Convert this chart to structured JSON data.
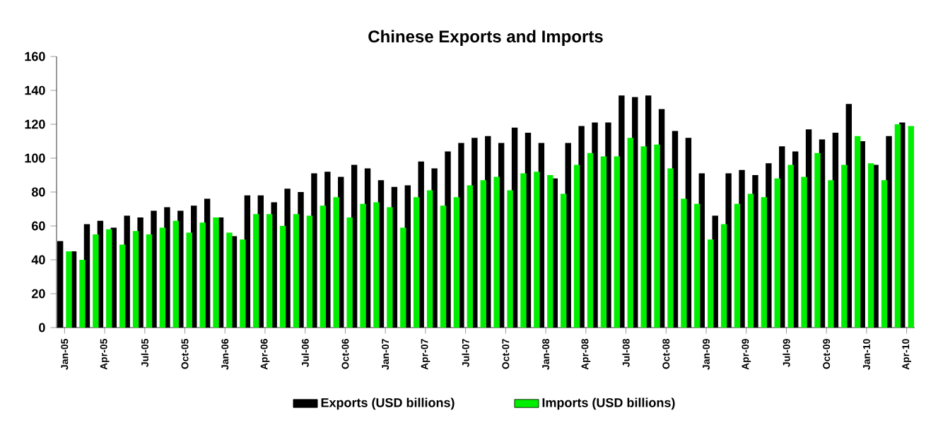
{
  "chart_data": {
    "type": "bar",
    "title": "Chinese Exports and Imports",
    "categories": [
      "Jan-05",
      null,
      null,
      "Apr-05",
      null,
      null,
      "Jul-05",
      null,
      null,
      "Oct-05",
      null,
      null,
      "Jan-06",
      null,
      null,
      "Apr-06",
      null,
      null,
      "Jul-06",
      null,
      null,
      "Oct-06",
      null,
      null,
      "Jan-07",
      null,
      null,
      "Apr-07",
      null,
      null,
      "Jul-07",
      null,
      null,
      "Oct-07",
      null,
      null,
      "Jan-08",
      null,
      null,
      "Apr-08",
      null,
      null,
      "Jul-08",
      null,
      null,
      "Oct-08",
      null,
      null,
      "Jan-09",
      null,
      null,
      "Apr-09",
      null,
      null,
      "Jul-09",
      null,
      null,
      "Oct-09",
      null,
      null,
      "Jan-10",
      null,
      null,
      "Apr-10"
    ],
    "series": [
      {
        "name": "Exports (USD billions)",
        "color": "#000000",
        "values": [
          51,
          45,
          61,
          63,
          59,
          66,
          65,
          69,
          71,
          69,
          72,
          76,
          65,
          54,
          78,
          78,
          74,
          82,
          80,
          91,
          92,
          89,
          96,
          94,
          87,
          83,
          84,
          98,
          94,
          104,
          109,
          112,
          113,
          109,
          118,
          115,
          109,
          88,
          109,
          119,
          121,
          121,
          137,
          136,
          137,
          129,
          116,
          112,
          91,
          66,
          91,
          93,
          90,
          97,
          107,
          104,
          117,
          111,
          115,
          132,
          110,
          96,
          113,
          121
        ]
      },
      {
        "name": "Imports (USD billions)",
        "color": "#00ee00",
        "values": [
          45,
          40,
          55,
          58,
          49,
          57,
          55,
          59,
          63,
          56,
          62,
          65,
          56,
          52,
          67,
          67,
          60,
          67,
          66,
          72,
          77,
          65,
          73,
          74,
          71,
          59,
          77,
          81,
          72,
          77,
          84,
          87,
          89,
          81,
          91,
          92,
          90,
          79,
          96,
          103,
          101,
          101,
          112,
          107,
          108,
          94,
          76,
          73,
          52,
          61,
          73,
          79,
          77,
          88,
          96,
          89,
          103,
          87,
          96,
          113,
          97,
          87,
          120,
          119
        ]
      }
    ],
    "ylim": [
      0,
      160
    ],
    "yticks": [
      0,
      20,
      40,
      60,
      80,
      100,
      120,
      140,
      160
    ],
    "grid": false,
    "legend": "bottom"
  }
}
